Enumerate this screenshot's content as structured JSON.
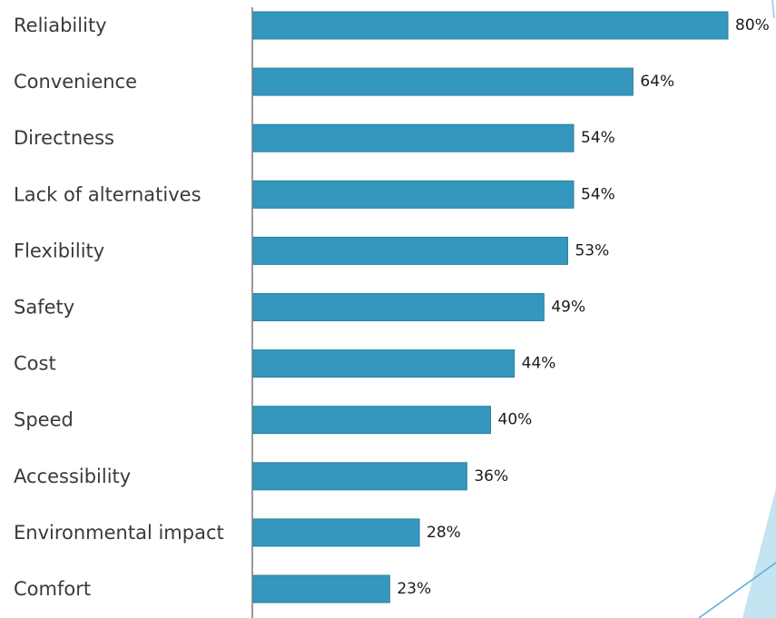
{
  "chart_data": {
    "type": "bar",
    "orientation": "horizontal",
    "categories": [
      "Reliability",
      "Convenience",
      "Directness",
      "Lack of alternatives",
      "Flexibility",
      "Safety",
      "Cost",
      "Speed",
      "Accessibility",
      "Environmental impact",
      "Comfort"
    ],
    "values": [
      80,
      64,
      54,
      54,
      53,
      49,
      44,
      40,
      36,
      28,
      23
    ],
    "value_labels": [
      "80%",
      "64%",
      "54%",
      "54%",
      "53%",
      "49%",
      "44%",
      "40%",
      "36%",
      "28%",
      "23%"
    ],
    "title": "",
    "xlabel": "",
    "ylabel": "",
    "xlim": [
      0,
      80
    ],
    "grid": false,
    "legend": "none",
    "colors": {
      "bar": "#3597bd",
      "bar_edge": "#2a7fa2",
      "axis": "#9a9a9a",
      "category_text": "#3a3a3a",
      "value_text": "#1a1a1a",
      "decoration_fill": "#b9dfed",
      "decoration_line": "#5aaed0"
    }
  }
}
